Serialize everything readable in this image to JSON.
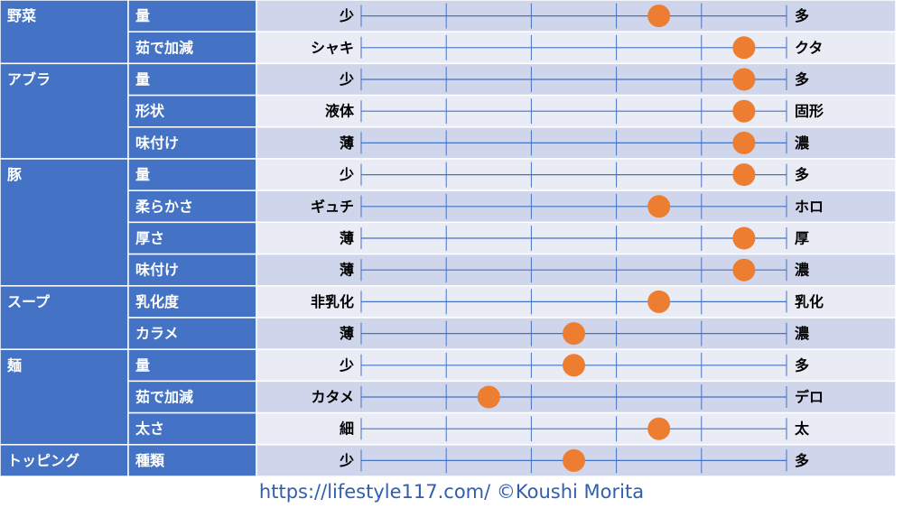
{
  "chart_data": {
    "type": "scatter",
    "scale_steps": 5,
    "groups": [
      {
        "name": "野菜",
        "rows": [
          {
            "label": "量",
            "left": "少",
            "right": "多",
            "value": 3.5
          },
          {
            "label": "茹で加減",
            "left": "シャキ",
            "right": "クタ",
            "value": 4.5
          }
        ]
      },
      {
        "name": "アブラ",
        "rows": [
          {
            "label": "量",
            "left": "少",
            "right": "多",
            "value": 4.5
          },
          {
            "label": "形状",
            "left": "液体",
            "right": "固形",
            "value": 4.5
          },
          {
            "label": "味付け",
            "left": "薄",
            "right": "濃",
            "value": 4.5
          }
        ]
      },
      {
        "name": "豚",
        "rows": [
          {
            "label": "量",
            "left": "少",
            "right": "多",
            "value": 4.5
          },
          {
            "label": "柔らかさ",
            "left": "ギュチ",
            "right": "ホロ",
            "value": 3.5
          },
          {
            "label": "厚さ",
            "left": "薄",
            "right": "厚",
            "value": 4.5
          },
          {
            "label": "味付け",
            "left": "薄",
            "right": "濃",
            "value": 4.5
          }
        ]
      },
      {
        "name": "スープ",
        "rows": [
          {
            "label": "乳化度",
            "left": "非乳化",
            "right": "乳化",
            "value": 3.5
          },
          {
            "label": "カラメ",
            "left": "薄",
            "right": "濃",
            "value": 2.5
          }
        ]
      },
      {
        "name": "麺",
        "rows": [
          {
            "label": "量",
            "left": "少",
            "right": "多",
            "value": 2.5
          },
          {
            "label": "茹で加減",
            "left": "カタメ",
            "right": "デロ",
            "value": 1.5
          },
          {
            "label": "太さ",
            "left": "細",
            "right": "太",
            "value": 3.5
          }
        ]
      },
      {
        "name": "トッピング",
        "rows": [
          {
            "label": "種類",
            "left": "少",
            "right": "多",
            "value": 2.5
          }
        ]
      }
    ]
  },
  "colors": {
    "header_blue": "#4472c4",
    "row_dark": "#cfd5ea",
    "row_light": "#e9ebf5",
    "axis_line": "#4472c4",
    "marker": "#ed7d31",
    "label_text": "#ffffff",
    "end_text": "#000000"
  },
  "footer": {
    "text": "https://lifestyle117.com/  ©Koushi Morita"
  }
}
